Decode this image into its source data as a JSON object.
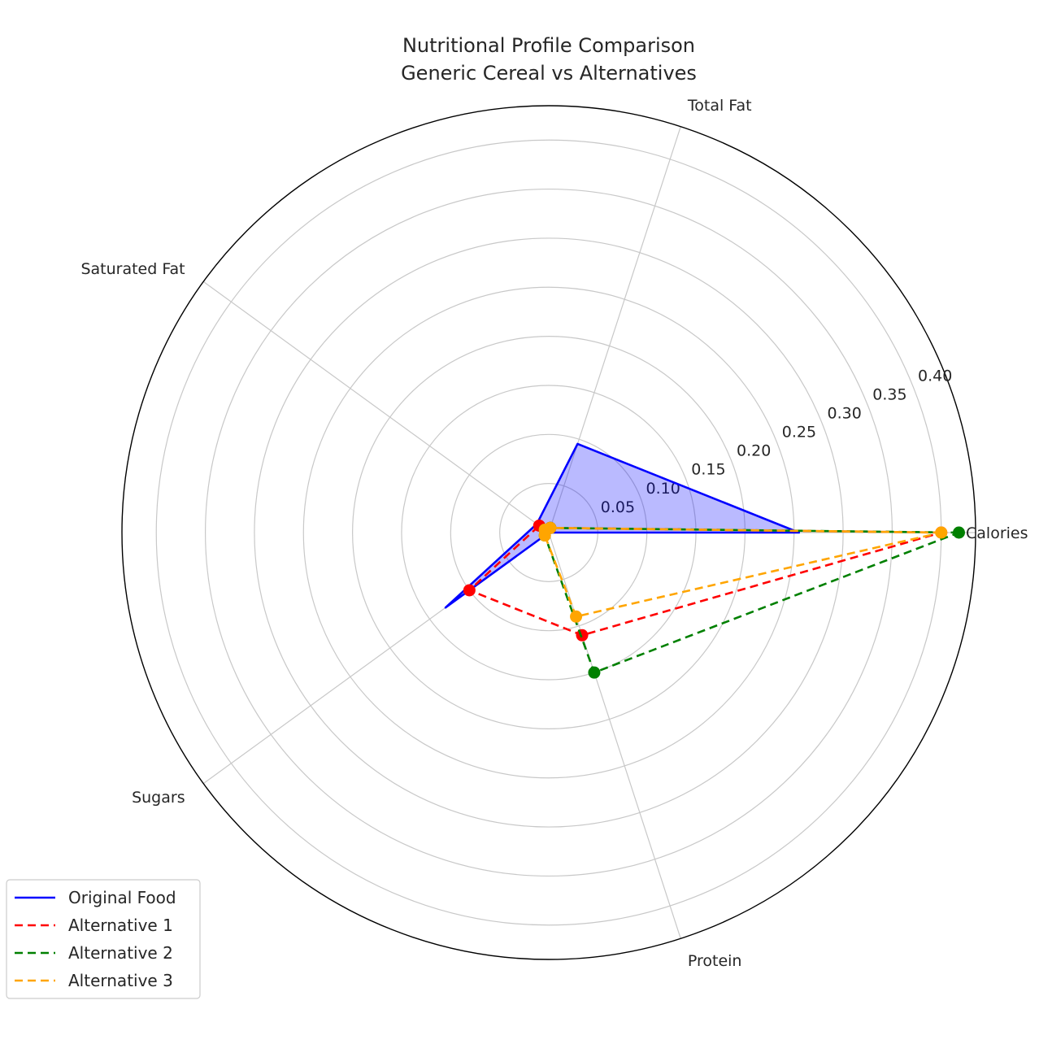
{
  "chart_data": {
    "type": "radar",
    "title_lines": [
      "Nutritional Profile Comparison",
      "Generic Cereal vs Alternatives"
    ],
    "categories": [
      "Calories",
      "Total Fat",
      "Saturated Fat",
      "Sugars",
      "Protein"
    ],
    "r_ticks": [
      0.05,
      0.1,
      0.15,
      0.2,
      0.25,
      0.3,
      0.35,
      0.4
    ],
    "r_tick_labels": [
      "0.05",
      "0.10",
      "0.15",
      "0.20",
      "0.25",
      "0.30",
      "0.35",
      "0.40"
    ],
    "r_max": 0.435,
    "grid": true,
    "legend_position": "lower-left",
    "series": [
      {
        "name": "Original Food",
        "values": [
          0.255,
          0.095,
          0.015,
          0.13,
          0.0
        ],
        "color": "#0000ff",
        "style": "solid",
        "fill": true,
        "markers": false
      },
      {
        "name": "Alternative 1",
        "values": [
          0.4,
          0.005,
          0.012,
          0.1,
          0.11
        ],
        "color": "#ff0000",
        "style": "dashed",
        "fill": false,
        "markers": true
      },
      {
        "name": "Alternative 2",
        "values": [
          0.418,
          0.005,
          0.005,
          0.005,
          0.15
        ],
        "color": "#008000",
        "style": "dashed",
        "fill": false,
        "markers": true
      },
      {
        "name": "Alternative 3",
        "values": [
          0.4,
          0.005,
          0.005,
          0.005,
          0.09
        ],
        "color": "#ffa500",
        "style": "dashed",
        "fill": false,
        "markers": true
      }
    ]
  }
}
